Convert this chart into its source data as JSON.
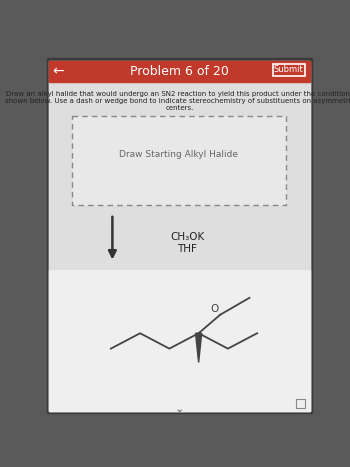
{
  "title": "Problem 6 of 20",
  "submit_text": "Submit",
  "header_color": "#c0392b",
  "header_text_color": "#ffffff",
  "bg_color": "#5a5a5a",
  "app_bg": "#e8e8e8",
  "content_bg": "#e0e0e0",
  "bottom_panel_bg": "#e8e8e8",
  "white": "#ffffff",
  "problem_text_line1": "Draw an alkyl halide that would undergo an SN2 reaction to yield this product under the conditions",
  "problem_text_line2": "shown below. Use a dash or wedge bond to indicate stereochemistry of substituents on asymmetric",
  "problem_text_line3": "centers.",
  "draw_box_label": "Draw Starting Alkyl Halide",
  "reagent_line1": "CH₃OK",
  "reagent_line2": "THF",
  "molecule_color": "#444444",
  "oxygen_label": "O"
}
